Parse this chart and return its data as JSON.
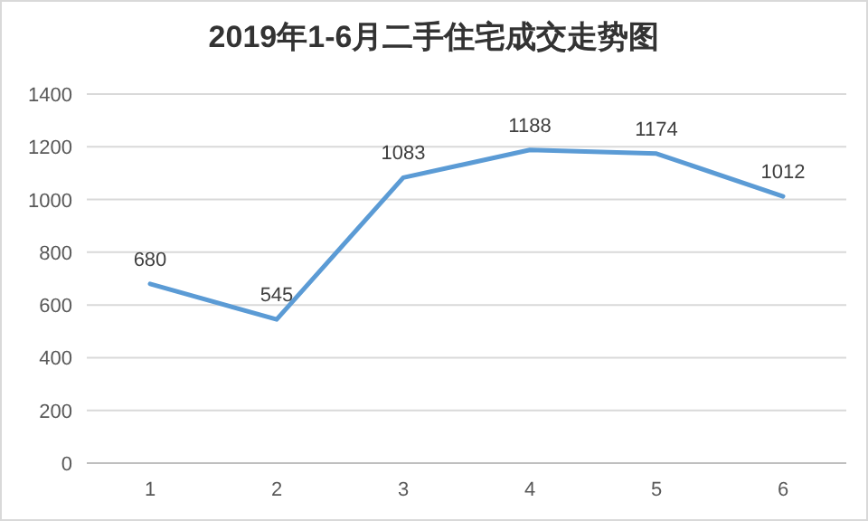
{
  "chart_data": {
    "type": "line",
    "title": "2019年1-6月二手住宅成交走势图",
    "categories": [
      "1",
      "2",
      "3",
      "4",
      "5",
      "6"
    ],
    "series": [
      {
        "color": "#5b9bd5",
        "values": [
          680,
          545,
          1083,
          1188,
          1174,
          1012
        ]
      }
    ],
    "ylim": [
      0,
      1400
    ],
    "yticks": [
      0,
      200,
      400,
      600,
      800,
      1000,
      1200,
      1400
    ],
    "grid": "y",
    "data_labels": true,
    "marker": "none",
    "line_style": "solid"
  }
}
